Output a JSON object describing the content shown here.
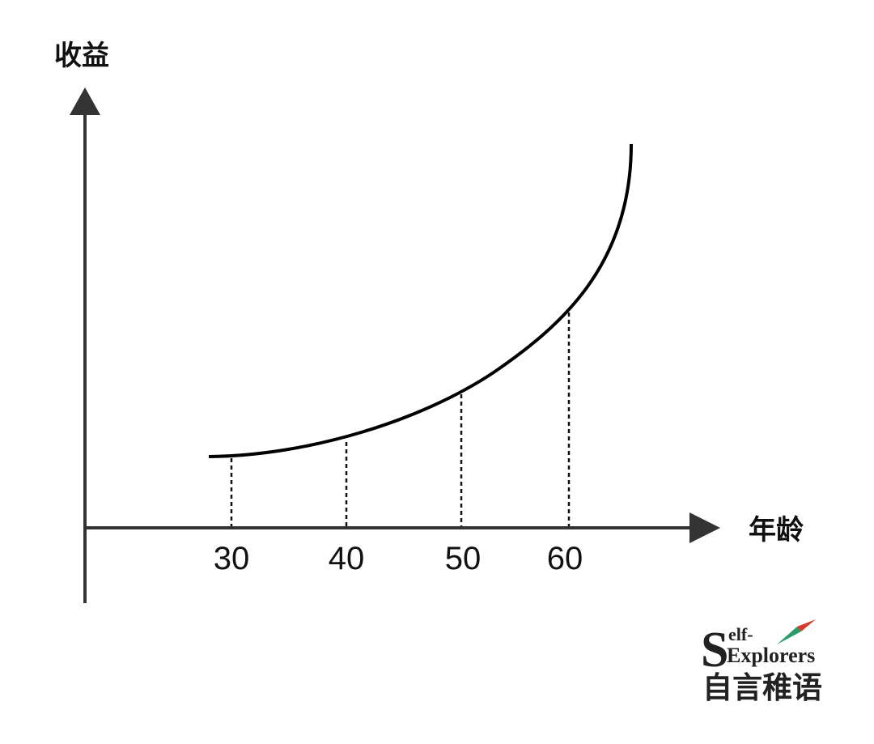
{
  "diagram": {
    "y_axis_label": "收益",
    "x_axis_label": "年龄",
    "x_tick_labels": [
      "30",
      "40",
      "50",
      "60"
    ],
    "logo": {
      "initial": "S",
      "line1": "elf-",
      "line2": "Explorers",
      "chinese": "自言稚语"
    }
  }
}
